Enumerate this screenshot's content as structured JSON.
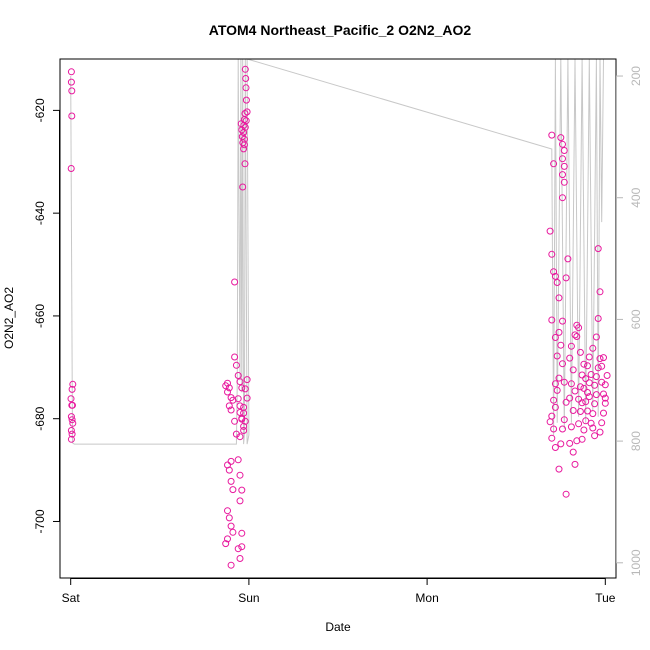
{
  "chart_data": {
    "type": "scatter",
    "title": "ATOM4 Northeast_Pacific_2 O2N2_AO2",
    "xlabel": "Date",
    "ylabel": "O2N2_AO2",
    "x_ticks": [
      {
        "label": "Sat",
        "value": 0
      },
      {
        "label": "Sun",
        "value": 1
      },
      {
        "label": "Mon",
        "value": 2
      },
      {
        "label": "Tue",
        "value": 3
      }
    ],
    "xlim": [
      -0.06,
      3.06
    ],
    "ylim": [
      -711,
      -610
    ],
    "y_ticks": [
      -700,
      -680,
      -660,
      -640,
      -620
    ],
    "right_axis": {
      "ylim": [
        1025,
        172
      ],
      "ticks": [
        200,
        400,
        600,
        800,
        1000
      ],
      "color": "#b8b8b8"
    },
    "colors": {
      "points": "#e8199e",
      "depth_line": "#c8c8c8",
      "frame": "#000000"
    },
    "series": [
      {
        "points": [
          [
            0.004,
            -612.5
          ],
          [
            0.004,
            -614.5
          ],
          [
            0.006,
            -616.2
          ],
          [
            0.006,
            -621.1
          ],
          [
            0.003,
            -631.3
          ],
          [
            0.012,
            -673.3
          ],
          [
            0.008,
            -674.3
          ],
          [
            0.002,
            -676.1
          ],
          [
            0.006,
            -677.4
          ],
          [
            0.01,
            -677.4
          ],
          [
            0.004,
            -679.6
          ],
          [
            0.008,
            -680.2
          ],
          [
            0.012,
            -680.9
          ],
          [
            0.004,
            -682.3
          ],
          [
            0.008,
            -683.0
          ],
          [
            0.004,
            -684.0
          ],
          [
            0.88,
            -673.1
          ],
          [
            0.87,
            -673.6
          ],
          [
            0.89,
            -674.0
          ],
          [
            0.88,
            -674.8
          ],
          [
            0.9,
            -675.9
          ],
          [
            0.91,
            -676.4
          ],
          [
            0.89,
            -677.5
          ],
          [
            0.9,
            -678.3
          ],
          [
            0.92,
            -680.5
          ],
          [
            0.93,
            -683.0
          ],
          [
            0.9,
            -688.3
          ],
          [
            0.88,
            -689.0
          ],
          [
            0.89,
            -690.0
          ],
          [
            0.9,
            -692.2
          ],
          [
            0.91,
            -693.8
          ],
          [
            0.88,
            -697.9
          ],
          [
            0.89,
            -699.3
          ],
          [
            0.9,
            -700.9
          ],
          [
            0.91,
            -702.1
          ],
          [
            0.88,
            -703.4
          ],
          [
            0.87,
            -704.3
          ],
          [
            0.9,
            -708.5
          ],
          [
            0.92,
            -653.4
          ],
          [
            0.92,
            -668.0
          ],
          [
            0.93,
            -669.6
          ],
          [
            0.94,
            -671.6
          ],
          [
            0.95,
            -672.8
          ],
          [
            0.96,
            -674.0
          ],
          [
            0.94,
            -676.1
          ],
          [
            0.95,
            -677.5
          ],
          [
            0.97,
            -678.9
          ],
          [
            0.96,
            -680.1
          ],
          [
            0.97,
            -682.3
          ],
          [
            0.94,
            -688.0
          ],
          [
            0.95,
            -691.0
          ],
          [
            0.96,
            -693.9
          ],
          [
            0.95,
            -696.0
          ],
          [
            0.96,
            -702.3
          ],
          [
            0.94,
            -705.3
          ],
          [
            0.95,
            -707.2
          ],
          [
            0.95,
            -678.8
          ],
          [
            0.96,
            -679.9
          ],
          [
            0.98,
            -680.5
          ],
          [
            0.97,
            -681.5
          ],
          [
            0.95,
            -683.5
          ],
          [
            0.99,
            -672.4
          ],
          [
            0.98,
            -674.2
          ],
          [
            0.99,
            -676.0
          ],
          [
            0.97,
            -677.8
          ],
          [
            0.96,
            -704.9
          ],
          [
            0.957,
            -622.6
          ],
          [
            0.96,
            -623.8
          ],
          [
            0.963,
            -625.1
          ],
          [
            0.966,
            -626.3
          ],
          [
            0.97,
            -627.5
          ],
          [
            0.97,
            -624.3
          ],
          [
            0.972,
            -622.9
          ],
          [
            0.975,
            -621.8
          ],
          [
            0.978,
            -620.6
          ],
          [
            0.98,
            -623.3
          ],
          [
            0.975,
            -626.7
          ],
          [
            0.978,
            -630.4
          ],
          [
            0.965,
            -634.9
          ],
          [
            0.98,
            -612.0
          ],
          [
            0.982,
            -613.8
          ],
          [
            0.984,
            -615.6
          ],
          [
            0.986,
            -618.0
          ],
          [
            0.99,
            -620.3
          ],
          [
            0.985,
            -622.0
          ],
          [
            0.975,
            -625.6
          ],
          [
            2.7,
            -624.8
          ],
          [
            2.71,
            -630.4
          ],
          [
            2.69,
            -643.5
          ],
          [
            2.7,
            -648.0
          ],
          [
            2.71,
            -651.4
          ],
          [
            2.72,
            -652.3
          ],
          [
            2.73,
            -653.5
          ],
          [
            2.74,
            -656.5
          ],
          [
            2.7,
            -660.8
          ],
          [
            2.72,
            -664.2
          ],
          [
            2.73,
            -667.8
          ],
          [
            2.74,
            -672.1
          ],
          [
            2.72,
            -673.2
          ],
          [
            2.73,
            -674.5
          ],
          [
            2.71,
            -676.4
          ],
          [
            2.72,
            -677.8
          ],
          [
            2.7,
            -679.5
          ],
          [
            2.69,
            -680.6
          ],
          [
            2.71,
            -682.0
          ],
          [
            2.7,
            -683.8
          ],
          [
            2.72,
            -685.6
          ],
          [
            2.74,
            -689.8
          ],
          [
            2.75,
            -684.9
          ],
          [
            2.76,
            -682.0
          ],
          [
            2.77,
            -680.2
          ],
          [
            2.78,
            -676.8
          ],
          [
            2.77,
            -672.9
          ],
          [
            2.76,
            -669.3
          ],
          [
            2.75,
            -665.7
          ],
          [
            2.74,
            -663.2
          ],
          [
            2.76,
            -661.0
          ],
          [
            2.78,
            -652.6
          ],
          [
            2.79,
            -648.9
          ],
          [
            2.76,
            -637.0
          ],
          [
            2.77,
            -634.0
          ],
          [
            2.76,
            -632.5
          ],
          [
            2.77,
            -630.9
          ],
          [
            2.76,
            -629.4
          ],
          [
            2.77,
            -627.8
          ],
          [
            2.76,
            -626.6
          ],
          [
            2.75,
            -625.3
          ],
          [
            2.78,
            -694.7
          ],
          [
            2.8,
            -684.8
          ],
          [
            2.81,
            -681.6
          ],
          [
            2.82,
            -678.4
          ],
          [
            2.8,
            -676.0
          ],
          [
            2.81,
            -673.2
          ],
          [
            2.82,
            -670.5
          ],
          [
            2.8,
            -668.2
          ],
          [
            2.81,
            -665.9
          ],
          [
            2.83,
            -663.7
          ],
          [
            2.84,
            -661.8
          ],
          [
            2.82,
            -686.5
          ],
          [
            2.83,
            -688.9
          ],
          [
            2.84,
            -684.3
          ],
          [
            2.85,
            -681.0
          ],
          [
            2.86,
            -678.6
          ],
          [
            2.85,
            -676.2
          ],
          [
            2.86,
            -673.8
          ],
          [
            2.87,
            -671.5
          ],
          [
            2.88,
            -669.4
          ],
          [
            2.86,
            -667.1
          ],
          [
            2.87,
            -684.0
          ],
          [
            2.88,
            -682.2
          ],
          [
            2.89,
            -680.4
          ],
          [
            2.9,
            -678.5
          ],
          [
            2.89,
            -676.7
          ],
          [
            2.9,
            -674.9
          ],
          [
            2.91,
            -673.0
          ],
          [
            2.92,
            -671.4
          ],
          [
            2.9,
            -669.7
          ],
          [
            2.91,
            -668.0
          ],
          [
            2.93,
            -666.3
          ],
          [
            2.92,
            -680.9
          ],
          [
            2.93,
            -679.0
          ],
          [
            2.94,
            -677.1
          ],
          [
            2.95,
            -675.3
          ],
          [
            2.94,
            -673.5
          ],
          [
            2.95,
            -671.8
          ],
          [
            2.96,
            -670.1
          ],
          [
            2.97,
            -668.3
          ],
          [
            2.95,
            -664.1
          ],
          [
            2.96,
            -660.5
          ],
          [
            2.97,
            -655.3
          ],
          [
            2.96,
            -646.9
          ],
          [
            2.97,
            -682.6
          ],
          [
            2.98,
            -680.8
          ],
          [
            2.99,
            -678.9
          ],
          [
            3.0,
            -677.0
          ],
          [
            2.99,
            -675.2
          ],
          [
            3.0,
            -673.4
          ],
          [
            3.01,
            -671.6
          ],
          [
            2.98,
            -669.8
          ],
          [
            2.99,
            -668.1
          ],
          [
            3.0,
            -676.0
          ],
          [
            2.84,
            -664.0
          ],
          [
            2.85,
            -662.3
          ],
          [
            2.83,
            -674.6
          ],
          [
            2.87,
            -676.9
          ],
          [
            2.88,
            -674.1
          ],
          [
            2.89,
            -672.2
          ],
          [
            2.91,
            -675.7
          ],
          [
            2.93,
            -681.8
          ],
          [
            2.94,
            -683.3
          ],
          [
            2.98,
            -672.9
          ]
        ]
      }
    ],
    "depth_line": [
      [
        0.0,
        200
      ],
      [
        0.01,
        803
      ],
      [
        0.02,
        805
      ],
      [
        0.93,
        805
      ],
      [
        0.935,
        700
      ],
      [
        0.94,
        172
      ],
      [
        0.95,
        700
      ],
      [
        0.955,
        172
      ],
      [
        0.96,
        720
      ],
      [
        0.965,
        172
      ],
      [
        0.97,
        805
      ],
      [
        0.975,
        790
      ],
      [
        0.98,
        172
      ],
      [
        0.99,
        805
      ],
      [
        1.0,
        790
      ],
      [
        0.99,
        172
      ],
      [
        2.7,
        320
      ],
      [
        2.71,
        790
      ],
      [
        2.72,
        172
      ],
      [
        2.73,
        770
      ],
      [
        2.75,
        172
      ],
      [
        2.77,
        780
      ],
      [
        2.79,
        172
      ],
      [
        2.81,
        770
      ],
      [
        2.83,
        172
      ],
      [
        2.85,
        760
      ],
      [
        2.87,
        172
      ],
      [
        2.89,
        770
      ],
      [
        2.91,
        172
      ],
      [
        2.93,
        750
      ],
      [
        2.95,
        172
      ],
      [
        2.96,
        760
      ],
      [
        2.97,
        172
      ],
      [
        2.98,
        440
      ],
      [
        2.99,
        172
      ]
    ]
  }
}
